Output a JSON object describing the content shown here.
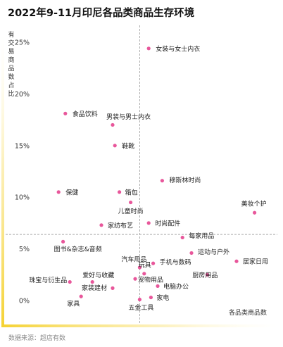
{
  "title": "2022年9-11月印尼各品类商品生存环境",
  "source": "数据来源：超店有数",
  "colors": {
    "point": "#e8579b",
    "accent_gradient_top": "#fff7c8",
    "accent_gradient_bottom": "#f5d232",
    "reference_line": "#9a9a9a"
  },
  "chart_data": {
    "type": "scatter",
    "title": "2022年9-11月印尼各品类商品生存环境",
    "xlabel": "各品类商品数",
    "ylabel": "有交易商品数占比",
    "y_ticks": [
      "0%",
      "5%",
      "10%",
      "15%",
      "20%",
      "25%"
    ],
    "ylim": [
      -1,
      26
    ],
    "xlim": [
      0,
      100
    ],
    "x_ticks_shown": false,
    "grid": false,
    "reference_lines": {
      "x": 47,
      "y": 6.4
    },
    "points": [
      {
        "name": "女装与女士内衣",
        "x": 51,
        "y": 24.4
      },
      {
        "name": "食品饮料",
        "x": 14,
        "y": 18.1
      },
      {
        "name": "男装与男士内衣",
        "x": 35,
        "y": 17.0
      },
      {
        "name": "鞋靴",
        "x": 36,
        "y": 15.0
      },
      {
        "name": "穆斯林时尚",
        "x": 57,
        "y": 11.6
      },
      {
        "name": "保健",
        "x": 11,
        "y": 10.5
      },
      {
        "name": "箱包",
        "x": 38,
        "y": 10.5
      },
      {
        "name": "儿童时尚",
        "x": 43,
        "y": 9.5
      },
      {
        "name": "美妆个护",
        "x": 98,
        "y": 8.5
      },
      {
        "name": "家纺布艺",
        "x": 30,
        "y": 7.3
      },
      {
        "name": "时尚配件",
        "x": 51,
        "y": 7.5
      },
      {
        "name": "每家用品",
        "x": 66,
        "y": 6.1
      },
      {
        "name": "图书&杂志&音频",
        "x": 13,
        "y": 5.7
      },
      {
        "name": "运动与户外",
        "x": 70,
        "y": 4.6
      },
      {
        "name": "居家日用",
        "x": 90,
        "y": 3.8
      },
      {
        "name": "手机与数码",
        "x": 53,
        "y": 3.6
      },
      {
        "name": "汽车用品",
        "x": 47,
        "y": 3.2
      },
      {
        "name": "厨房用品",
        "x": 77,
        "y": 2.5
      },
      {
        "name": "玩具",
        "x": 49,
        "y": 2.6
      },
      {
        "name": "珠宝与衍生品",
        "x": 16,
        "y": 1.8
      },
      {
        "name": "爱好与收藏",
        "x": 26,
        "y": 1.8
      },
      {
        "name": "宠物用品",
        "x": 45,
        "y": 2.1
      },
      {
        "name": "家装建材",
        "x": 35,
        "y": 1.2
      },
      {
        "name": "电脑办公",
        "x": 55,
        "y": 1.4
      },
      {
        "name": "家电",
        "x": 52,
        "y": 0.3
      },
      {
        "name": "家具",
        "x": 21,
        "y": 0.4
      },
      {
        "name": "五金工具",
        "x": 47,
        "y": 0.1
      }
    ]
  }
}
